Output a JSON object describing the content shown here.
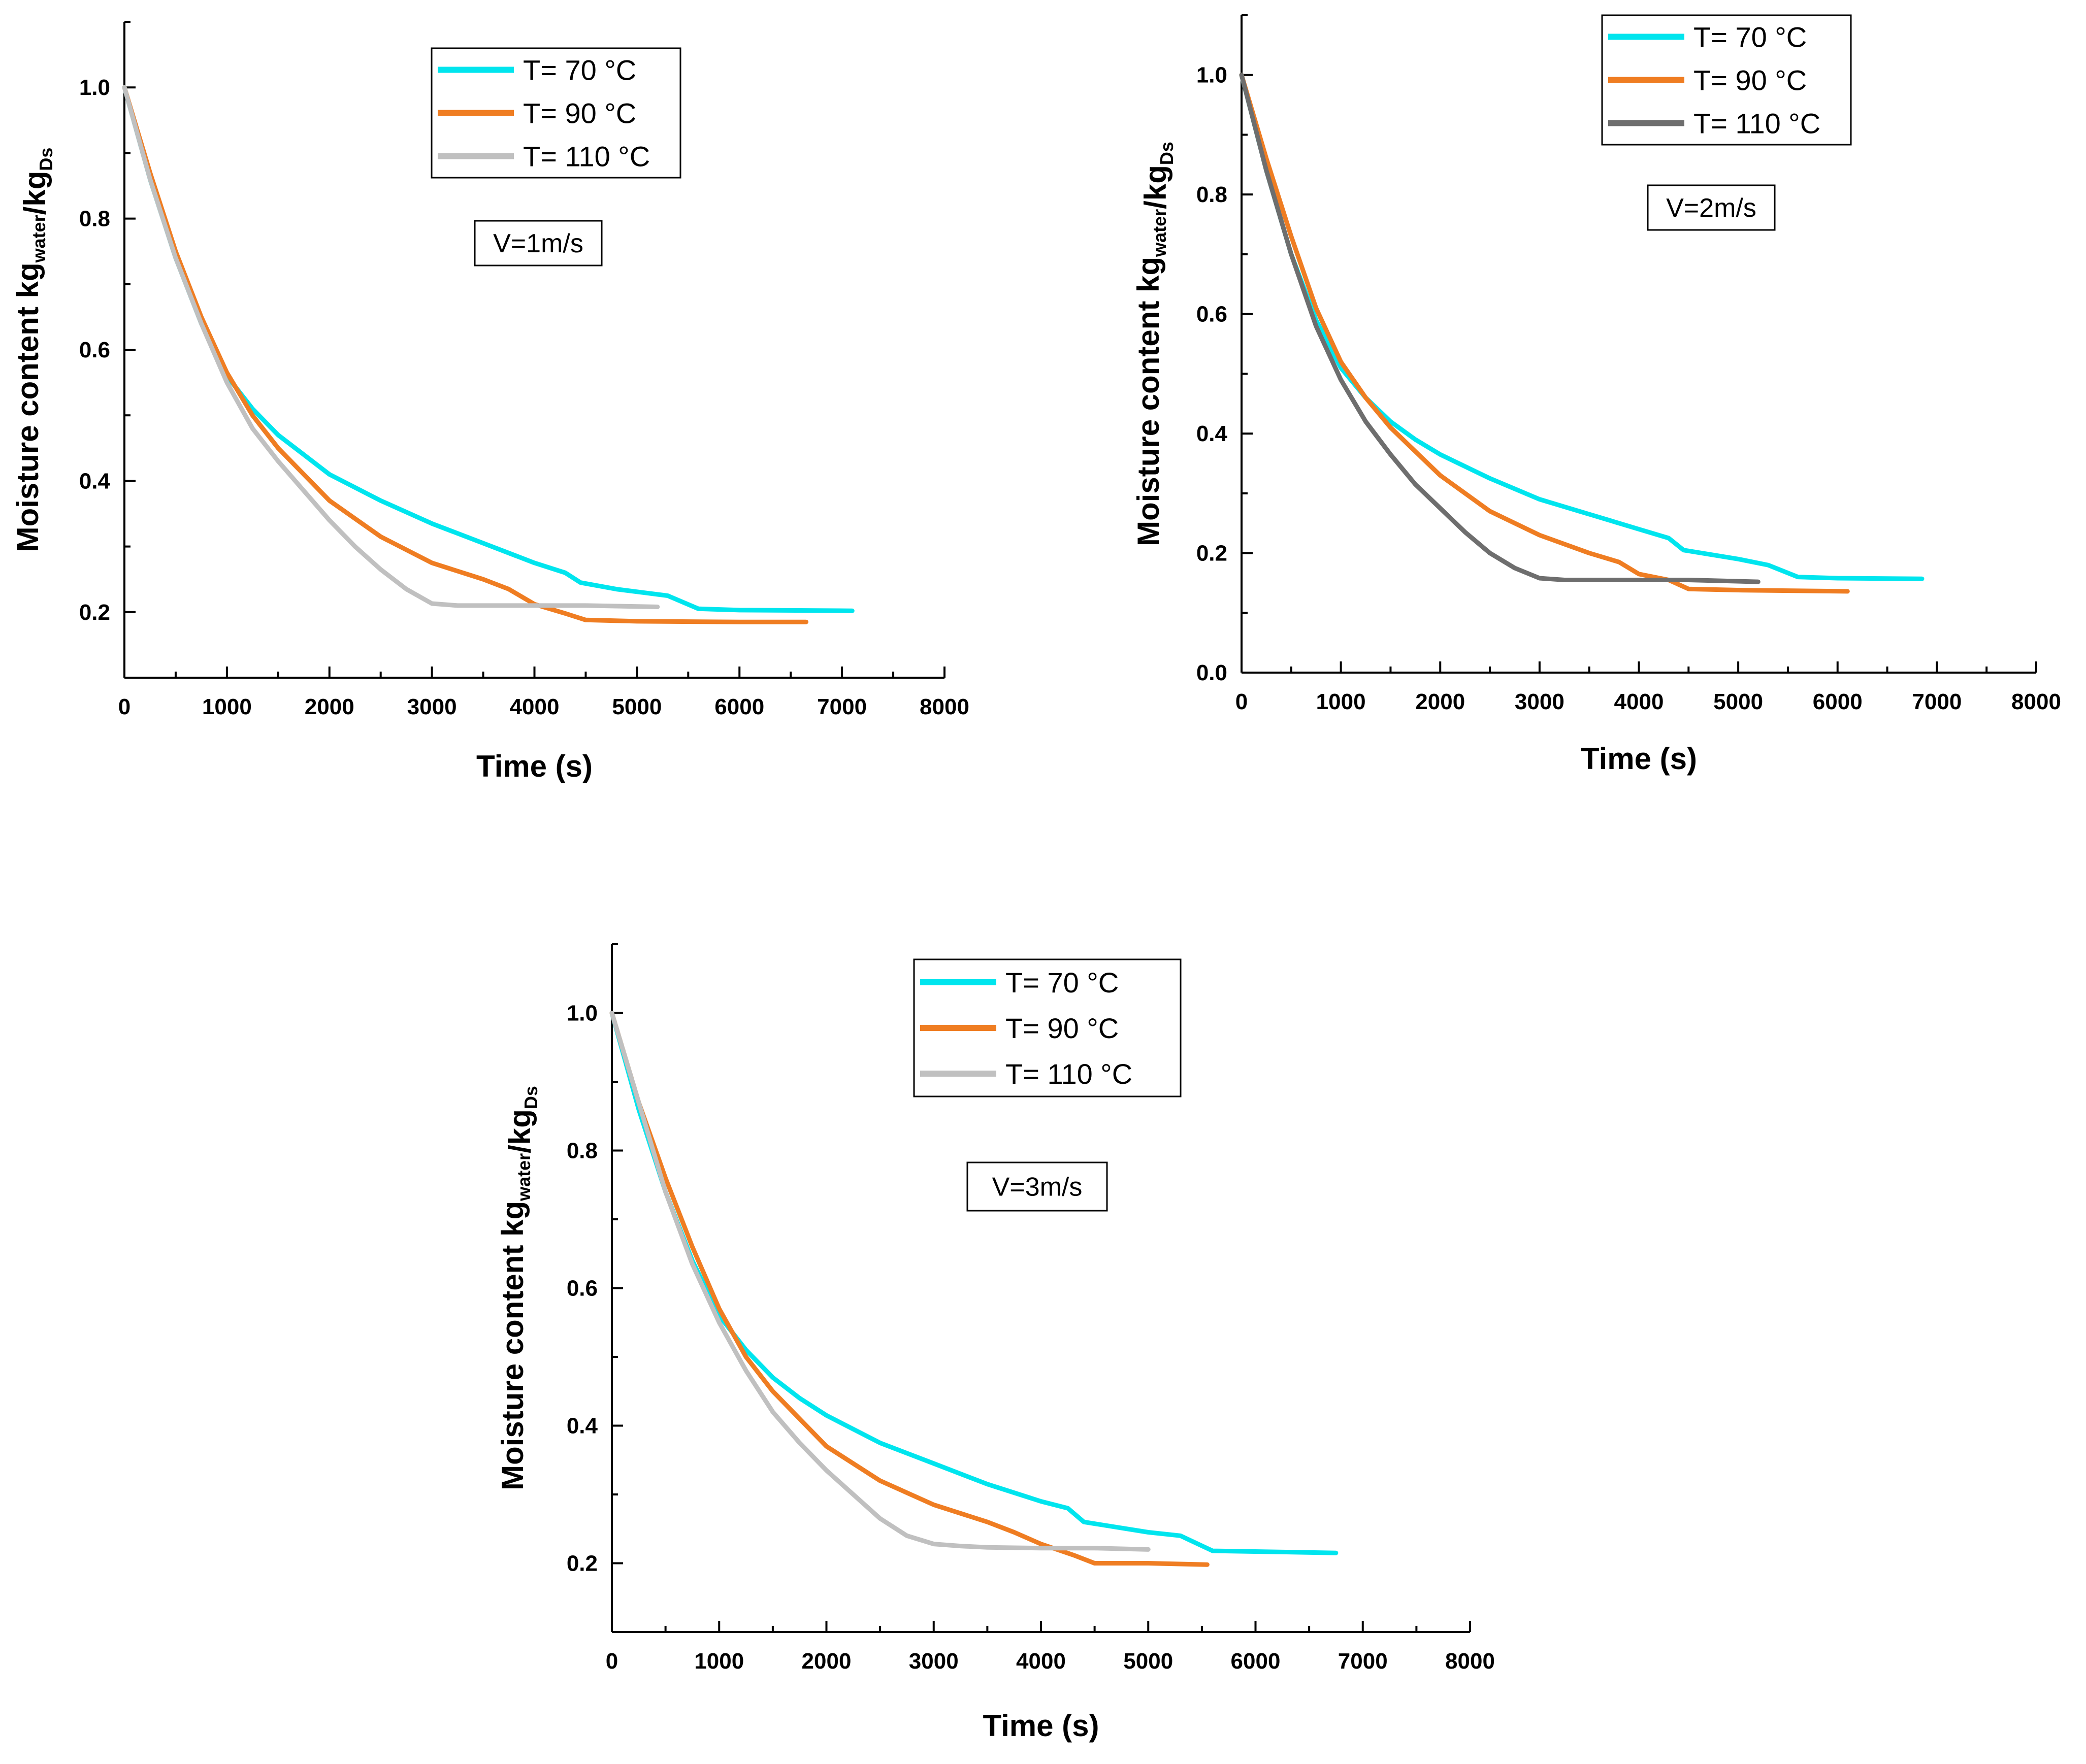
{
  "chart_data": [
    {
      "type": "line",
      "annotation": "V=1m/s",
      "xlabel": "Time (s)",
      "ylabel": {
        "main": "Moisture content kg",
        "sub1": "water",
        "mid": "/kg",
        "sub2": "Ds"
      },
      "xlim": [
        0,
        8000
      ],
      "ylim": [
        0.1,
        1.1
      ],
      "xticks": [
        0,
        1000,
        2000,
        3000,
        4000,
        5000,
        6000,
        7000,
        8000
      ],
      "xtick_labels": [
        "0",
        "1000",
        "2000",
        "3000",
        "4000",
        "5000",
        "6000",
        "7000",
        "8000"
      ],
      "yticks": [
        0.2,
        0.4,
        0.6,
        0.8,
        1.0
      ],
      "ytick_labels": [
        "0.2",
        "0.4",
        "0.6",
        "0.8",
        "1.0"
      ],
      "legend_position": "top-center",
      "series": [
        {
          "name": "T= 70 °C",
          "color": "#00e5ee",
          "x": [
            0,
            250,
            500,
            750,
            1000,
            1250,
            1500,
            1750,
            2000,
            2500,
            3000,
            3500,
            4000,
            4300,
            4450,
            4800,
            5300,
            5600,
            6000,
            7100
          ],
          "y": [
            1.0,
            0.86,
            0.74,
            0.64,
            0.56,
            0.51,
            0.47,
            0.44,
            0.41,
            0.37,
            0.335,
            0.305,
            0.275,
            0.26,
            0.245,
            0.235,
            0.225,
            0.205,
            0.203,
            0.202
          ]
        },
        {
          "name": "T= 90 °C",
          "color": "#ef7d22",
          "x": [
            0,
            250,
            500,
            750,
            1000,
            1250,
            1500,
            1750,
            2000,
            2500,
            3000,
            3500,
            3750,
            4000,
            4300,
            4500,
            5000,
            6000,
            6650
          ],
          "y": [
            1.0,
            0.87,
            0.75,
            0.65,
            0.565,
            0.5,
            0.45,
            0.41,
            0.37,
            0.315,
            0.275,
            0.25,
            0.235,
            0.212,
            0.198,
            0.188,
            0.186,
            0.185,
            0.185
          ]
        },
        {
          "name": "T= 110 °C",
          "color": "#c0c0c0",
          "x": [
            0,
            250,
            500,
            750,
            1000,
            1250,
            1500,
            1750,
            2000,
            2250,
            2500,
            2750,
            3000,
            3250,
            3500,
            4000,
            4500,
            5200
          ],
          "y": [
            1.0,
            0.86,
            0.74,
            0.64,
            0.55,
            0.48,
            0.43,
            0.385,
            0.34,
            0.3,
            0.265,
            0.235,
            0.213,
            0.21,
            0.21,
            0.21,
            0.21,
            0.208
          ]
        }
      ]
    },
    {
      "type": "line",
      "annotation": "V=2m/s",
      "xlabel": "Time (s)",
      "ylabel": {
        "main": "Moisture content kg",
        "sub1": "water",
        "mid": "/kg",
        "sub2": "Ds"
      },
      "xlim": [
        0,
        8000
      ],
      "ylim": [
        0,
        1.1
      ],
      "xticks": [
        0,
        1000,
        2000,
        3000,
        4000,
        5000,
        6000,
        7000,
        8000
      ],
      "xtick_labels": [
        "0",
        "1000",
        "2000",
        "3000",
        "4000",
        "5000",
        "6000",
        "7000",
        "8000"
      ],
      "yticks": [
        0.0,
        0.2,
        0.4,
        0.6,
        0.8,
        1.0
      ],
      "ytick_labels": [
        "0.0",
        "0.2",
        "0.4",
        "0.6",
        "0.8",
        "1.0"
      ],
      "legend_position": "top-right",
      "series": [
        {
          "name": "T= 70 °C",
          "color": "#00e5ee",
          "x": [
            0,
            250,
            500,
            750,
            1000,
            1250,
            1500,
            1750,
            2000,
            2500,
            3000,
            3500,
            4000,
            4300,
            4450,
            5000,
            5300,
            5600,
            6000,
            6850
          ],
          "y": [
            1.0,
            0.84,
            0.7,
            0.59,
            0.51,
            0.46,
            0.42,
            0.39,
            0.365,
            0.325,
            0.29,
            0.265,
            0.24,
            0.225,
            0.205,
            0.19,
            0.18,
            0.16,
            0.158,
            0.157
          ]
        },
        {
          "name": "T= 90 °C",
          "color": "#ef7d22",
          "x": [
            0,
            250,
            500,
            750,
            1000,
            1250,
            1500,
            1750,
            2000,
            2500,
            3000,
            3500,
            3800,
            4000,
            4300,
            4500,
            5000,
            6100
          ],
          "y": [
            1.0,
            0.86,
            0.73,
            0.61,
            0.52,
            0.46,
            0.41,
            0.37,
            0.33,
            0.27,
            0.23,
            0.2,
            0.185,
            0.165,
            0.155,
            0.14,
            0.138,
            0.136
          ]
        },
        {
          "name": "T= 110 °C",
          "color": "#6e6e6e",
          "x": [
            0,
            250,
            500,
            750,
            1000,
            1250,
            1500,
            1750,
            2000,
            2250,
            2500,
            2750,
            3000,
            3250,
            3500,
            4000,
            4500,
            5200
          ],
          "y": [
            1.0,
            0.84,
            0.7,
            0.58,
            0.49,
            0.42,
            0.365,
            0.315,
            0.275,
            0.235,
            0.2,
            0.175,
            0.158,
            0.155,
            0.155,
            0.155,
            0.155,
            0.152
          ]
        }
      ]
    },
    {
      "type": "line",
      "annotation": "V=3m/s",
      "xlabel": "Time (s)",
      "ylabel": {
        "main": "Moisture content kg",
        "sub1": "water",
        "mid": "/kg",
        "sub2": "Ds"
      },
      "xlim": [
        0,
        8000
      ],
      "ylim": [
        0.1,
        1.1
      ],
      "xticks": [
        0,
        1000,
        2000,
        3000,
        4000,
        5000,
        6000,
        7000,
        8000
      ],
      "xtick_labels": [
        "0",
        "1000",
        "2000",
        "3000",
        "4000",
        "5000",
        "6000",
        "7000",
        "8000"
      ],
      "yticks": [
        0.2,
        0.4,
        0.6,
        0.8,
        1.0
      ],
      "ytick_labels": [
        "0.2",
        "0.4",
        "0.6",
        "0.8",
        "1.0"
      ],
      "legend_position": "top-center",
      "series": [
        {
          "name": "T= 70 °C",
          "color": "#00e5ee",
          "x": [
            0,
            250,
            500,
            750,
            1000,
            1250,
            1500,
            1750,
            2000,
            2500,
            3000,
            3500,
            4000,
            4250,
            4400,
            5000,
            5300,
            5600,
            6000,
            6750
          ],
          "y": [
            1.0,
            0.86,
            0.74,
            0.64,
            0.56,
            0.51,
            0.47,
            0.44,
            0.415,
            0.375,
            0.345,
            0.315,
            0.29,
            0.28,
            0.26,
            0.245,
            0.24,
            0.218,
            0.217,
            0.215
          ]
        },
        {
          "name": "T= 90 °C",
          "color": "#ef7d22",
          "x": [
            0,
            250,
            500,
            750,
            1000,
            1250,
            1500,
            1750,
            2000,
            2500,
            3000,
            3500,
            3750,
            4000,
            4300,
            4500,
            5000,
            5550
          ],
          "y": [
            1.0,
            0.87,
            0.76,
            0.66,
            0.57,
            0.5,
            0.45,
            0.41,
            0.37,
            0.32,
            0.285,
            0.26,
            0.245,
            0.228,
            0.212,
            0.2,
            0.2,
            0.198
          ]
        },
        {
          "name": "T= 110 °C",
          "color": "#c0c0c0",
          "x": [
            0,
            250,
            500,
            750,
            1000,
            1250,
            1500,
            1750,
            2000,
            2250,
            2500,
            2750,
            3000,
            3250,
            3500,
            4000,
            4500,
            5000
          ],
          "y": [
            1.0,
            0.87,
            0.74,
            0.635,
            0.55,
            0.48,
            0.42,
            0.375,
            0.335,
            0.3,
            0.265,
            0.24,
            0.228,
            0.225,
            0.223,
            0.222,
            0.222,
            0.22
          ]
        }
      ]
    }
  ]
}
